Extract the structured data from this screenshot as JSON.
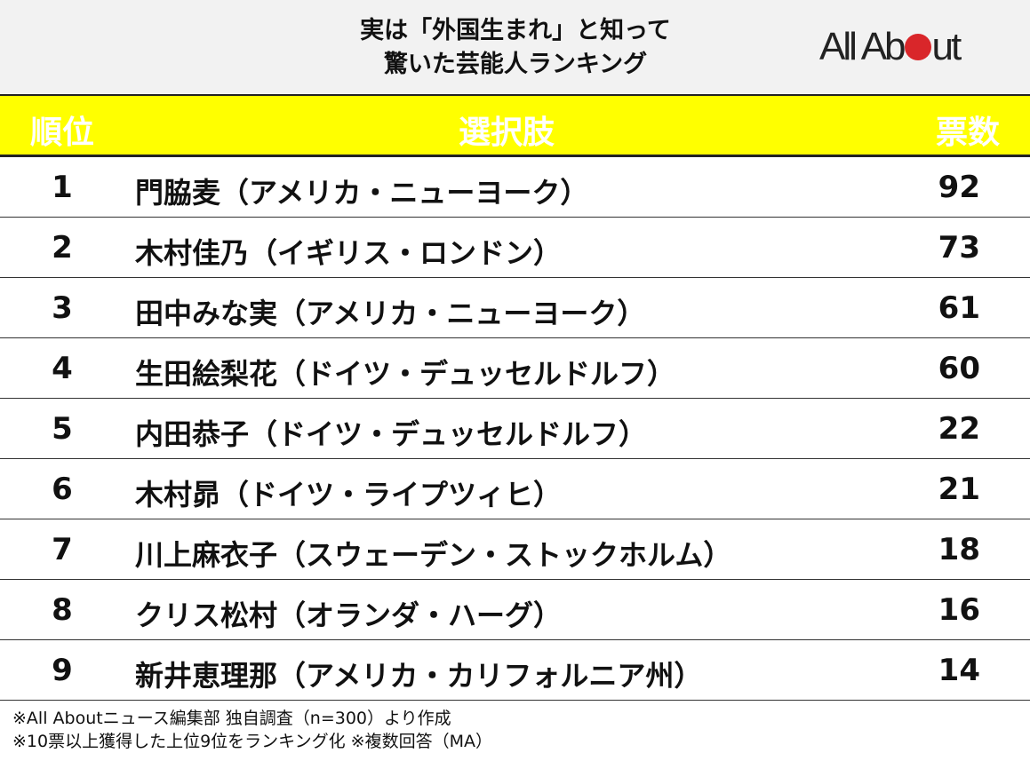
{
  "header": {
    "title_line1": "実は「外国生まれ」と知って",
    "title_line2": "驚いた芸能人ランキング",
    "logo_text_left": "All Ab",
    "logo_text_right": "ut",
    "brand_color": "#d9262a"
  },
  "table": {
    "columns": [
      "順位",
      "選択肢",
      "票数"
    ],
    "header_color": "#ffff00"
  },
  "chart_data": {
    "type": "table",
    "title": "実は「外国生まれ」と知って驚いた芸能人ランキング",
    "columns": [
      "順位",
      "選択肢",
      "票数"
    ],
    "rows": [
      {
        "rank": "1",
        "name": "門脇麦（アメリカ・ニューヨーク）",
        "votes": "92"
      },
      {
        "rank": "2",
        "name": "木村佳乃（イギリス・ロンドン）",
        "votes": "73"
      },
      {
        "rank": "3",
        "name": "田中みな実（アメリカ・ニューヨーク）",
        "votes": "61"
      },
      {
        "rank": "4",
        "name": "生田絵梨花（ドイツ・デュッセルドルフ）",
        "votes": "60"
      },
      {
        "rank": "5",
        "name": "内田恭子（ドイツ・デュッセルドルフ）",
        "votes": "22"
      },
      {
        "rank": "6",
        "name": "木村昴（ドイツ・ライプツィヒ）",
        "votes": "21"
      },
      {
        "rank": "7",
        "name": "川上麻衣子（スウェーデン・ストックホルム）",
        "votes": "18"
      },
      {
        "rank": "8",
        "name": "クリス松村（オランダ・ハーグ）",
        "votes": "16"
      },
      {
        "rank": "9",
        "name": "新井恵理那（アメリカ・カリフォルニア州）",
        "votes": "14"
      }
    ]
  },
  "footer": {
    "note1": "※All Aboutニュース編集部 独自調査（n=300）より作成",
    "note2": "※10票以上獲得した上位9位をランキング化 ※複数回答（MA）"
  }
}
